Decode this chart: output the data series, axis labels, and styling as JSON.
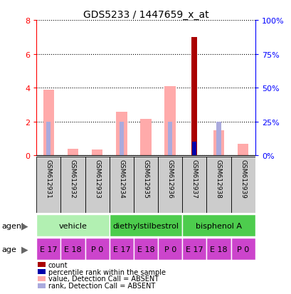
{
  "title": "GDS5233 / 1447659_x_at",
  "samples": [
    "GSM612931",
    "GSM612932",
    "GSM612933",
    "GSM612934",
    "GSM612935",
    "GSM612936",
    "GSM612937",
    "GSM612938",
    "GSM612939"
  ],
  "value_absent": [
    3.9,
    0.4,
    0.35,
    2.6,
    2.15,
    4.1,
    0.0,
    1.5,
    0.7
  ],
  "rank_absent": [
    0.25,
    0.0,
    0.0,
    0.25,
    0.0,
    0.25,
    0.0,
    0.25,
    0.0
  ],
  "count_present": [
    0.0,
    0.0,
    0.0,
    0.0,
    0.0,
    0.0,
    7.0,
    0.0,
    0.0
  ],
  "percentile_present_pct": [
    0.0,
    0.0,
    0.0,
    0.0,
    0.0,
    0.0,
    10.0,
    0.0,
    0.0
  ],
  "agents": [
    {
      "label": "vehicle",
      "start": 0,
      "end": 3,
      "color": "#b2f0b2"
    },
    {
      "label": "diethylstilbestrol",
      "start": 3,
      "end": 6,
      "color": "#4dcc4d"
    },
    {
      "label": "bisphenol A",
      "start": 6,
      "end": 9,
      "color": "#4dcc4d"
    }
  ],
  "ages": [
    "E 17",
    "E 18",
    "P 0",
    "E 17",
    "E 18",
    "P 0",
    "E 17",
    "E 18",
    "P 0"
  ],
  "age_color": "#cc44cc",
  "left_ylim": [
    0,
    8
  ],
  "right_ylim": [
    0,
    100
  ],
  "left_yticks": [
    0,
    2,
    4,
    6,
    8
  ],
  "right_yticks": [
    0,
    25,
    50,
    75,
    100
  ],
  "right_yticklabels": [
    "0%",
    "25%",
    "50%",
    "75%",
    "100%"
  ],
  "color_count": "#aa0000",
  "color_percentile": "#0000aa",
  "color_value_absent": "#ffaaaa",
  "color_rank_absent": "#aaaadd",
  "legend_items": [
    {
      "color": "#aa0000",
      "label": "count"
    },
    {
      "color": "#0000aa",
      "label": "percentile rank within the sample"
    },
    {
      "color": "#ffaaaa",
      "label": "value, Detection Call = ABSENT"
    },
    {
      "color": "#aaaadd",
      "label": "rank, Detection Call = ABSENT"
    }
  ],
  "fig_width": 4.1,
  "fig_height": 4.14,
  "dpi": 100
}
